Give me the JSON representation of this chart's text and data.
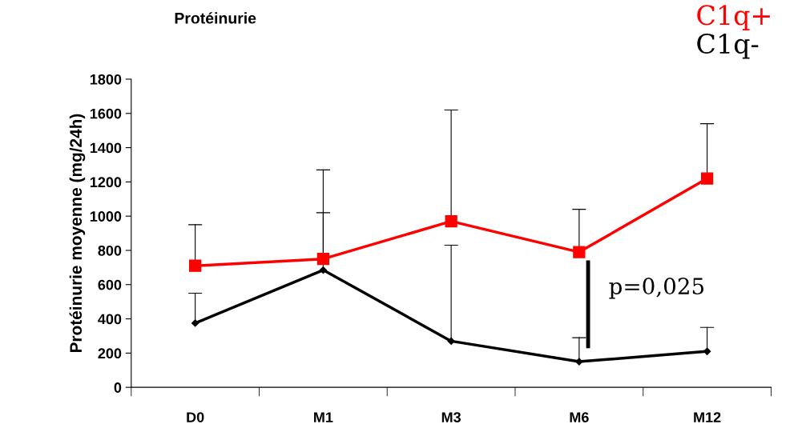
{
  "chart_data": {
    "type": "line",
    "title": "Protéinurie",
    "ylabel": "Protéinurie moyenne (mg/24h)",
    "categories": [
      "D0",
      "M1",
      "M3",
      "M6",
      "M12"
    ],
    "series": [
      {
        "name": "C1q+",
        "color": "#ff0000",
        "marker": "square",
        "values": [
          710,
          750,
          970,
          790,
          1220
        ],
        "errors": [
          [
            710,
            950
          ],
          [
            750,
            1270
          ],
          [
            970,
            1620
          ],
          [
            790,
            1040
          ],
          [
            1220,
            1540
          ]
        ]
      },
      {
        "name": "C1q-",
        "color": "#000000",
        "marker": "diamond",
        "values": [
          375,
          685,
          270,
          150,
          210
        ],
        "errors": [
          [
            375,
            550
          ],
          [
            685,
            1020
          ],
          [
            270,
            830
          ],
          [
            150,
            290
          ],
          [
            210,
            350
          ]
        ]
      }
    ],
    "ylim": [
      0,
      1800
    ],
    "yticks": [
      0,
      200,
      400,
      600,
      800,
      1000,
      1200,
      1400,
      1600,
      1800
    ],
    "annotations": [
      "p=0,025"
    ],
    "grid": false,
    "legend": "top right",
    "line_style": "solid"
  }
}
